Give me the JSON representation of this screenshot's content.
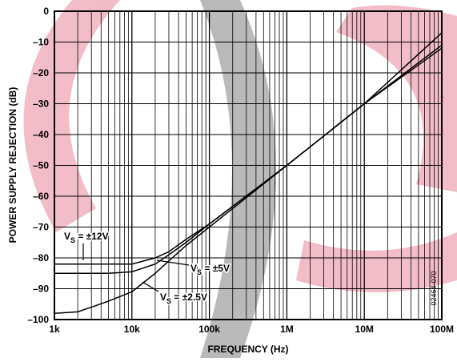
{
  "chart_data": {
    "type": "line",
    "x_label": "FREQUENCY (Hz)",
    "y_label": "POWER SUPPLY REJECTION (dB)",
    "figure_id": "02464-070",
    "log_x": true,
    "grid": true,
    "xlim": [
      1000,
      100000000
    ],
    "xticks": [
      {
        "value": 1000,
        "label": "1k"
      },
      {
        "value": 10000,
        "label": "10k"
      },
      {
        "value": 100000,
        "label": "100k"
      },
      {
        "value": 1000000,
        "label": "1M"
      },
      {
        "value": 10000000,
        "label": "10M"
      },
      {
        "value": 100000000,
        "label": "100M"
      }
    ],
    "ylim": [
      -100,
      0
    ],
    "yticks": [
      0,
      {
        "value": -10,
        "label": "–10"
      },
      {
        "value": -20,
        "label": "–20"
      },
      {
        "value": -30,
        "label": "–30"
      },
      {
        "value": -40,
        "label": "–40"
      },
      {
        "value": -50,
        "label": "–50"
      },
      {
        "value": -60,
        "label": "–60"
      },
      {
        "value": -70,
        "label": "–70"
      },
      {
        "value": -80,
        "label": "–80"
      },
      {
        "value": -90,
        "label": "–90"
      },
      {
        "value": -100,
        "label": "–100"
      }
    ],
    "x": [
      1000,
      2000,
      3000,
      5000,
      10000,
      20000,
      30000,
      50000,
      100000,
      1000000,
      10000000,
      100000000
    ],
    "series": [
      {
        "name": "±12V",
        "color": "#000000",
        "values": [
          -82,
          -82,
          -82,
          -82,
          -82,
          -80,
          -78,
          -74,
          -69,
          -50,
          -30,
          -7
        ]
      },
      {
        "name": "±5V",
        "color": "#000000",
        "values": [
          -85,
          -85,
          -85,
          -85,
          -84.5,
          -82,
          -79,
          -75,
          -69,
          -50,
          -30,
          -11
        ]
      },
      {
        "name": "±2.5V",
        "color": "#000000",
        "values": [
          -98,
          -97.5,
          -96,
          -94,
          -91,
          -85,
          -81,
          -76,
          -70,
          -50,
          -30,
          -12
        ]
      }
    ],
    "annotations": [
      {
        "main": "V",
        "sub": "S",
        "tail": " = ±12V"
      },
      {
        "main": "V",
        "sub": "S",
        "tail": " = ±5V"
      },
      {
        "main": "V",
        "sub": "S",
        "tail": " = ±2.5V"
      }
    ]
  }
}
